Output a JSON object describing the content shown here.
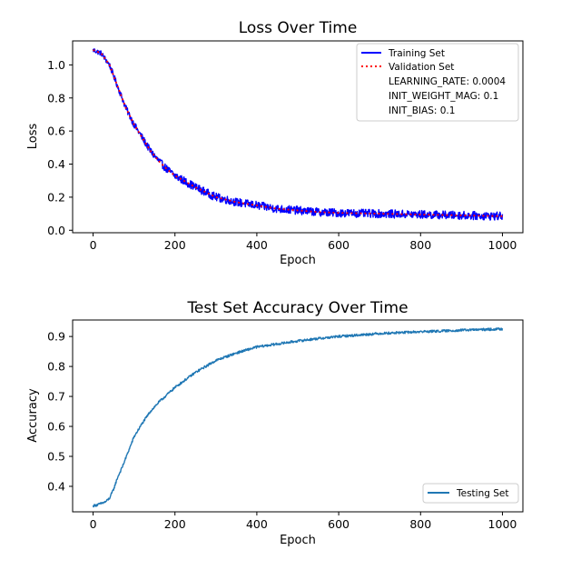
{
  "chart_data": [
    {
      "type": "line",
      "title": "Loss Over Time",
      "xlabel": "Epoch",
      "ylabel": "Loss",
      "xlim": [
        -50,
        1050
      ],
      "ylim": [
        -0.015,
        1.145
      ],
      "xticks": [
        0,
        200,
        400,
        600,
        800,
        1000
      ],
      "yticks": [
        0.0,
        0.2,
        0.4,
        0.6,
        0.8,
        1.0
      ],
      "xtick_labels": [
        "0",
        "200",
        "400",
        "600",
        "800",
        "1000"
      ],
      "ytick_labels": [
        "0.0",
        "0.2",
        "0.4",
        "0.6",
        "0.8",
        "1.0"
      ],
      "grid": false,
      "legend_position": "top-right",
      "legend": [
        {
          "label": "Training Set",
          "style": "solid",
          "color": "#0000ff"
        },
        {
          "label": "Validation Set",
          "style": "dotted",
          "color": "#ff0000"
        },
        {
          "label": "LEARNING_RATE: 0.0004",
          "style": "none"
        },
        {
          "label": "INIT_WEIGHT_MAG: 0.1",
          "style": "none"
        },
        {
          "label": "INIT_BIAS: 0.1",
          "style": "none"
        }
      ],
      "series": [
        {
          "name": "Training Set",
          "color": "#0000ff",
          "style": "solid",
          "noise": 0.025,
          "x": [
            0,
            20,
            40,
            60,
            80,
            100,
            120,
            140,
            160,
            180,
            200,
            250,
            300,
            350,
            400,
            450,
            500,
            550,
            600,
            700,
            800,
            900,
            1000
          ],
          "y": [
            1.09,
            1.07,
            1.0,
            0.87,
            0.74,
            0.64,
            0.56,
            0.48,
            0.42,
            0.37,
            0.33,
            0.26,
            0.2,
            0.17,
            0.15,
            0.13,
            0.12,
            0.11,
            0.105,
            0.1,
            0.095,
            0.09,
            0.085
          ]
        },
        {
          "name": "Validation Set",
          "color": "#ff0000",
          "style": "dotted",
          "x": [
            0,
            20,
            40,
            60,
            80,
            100,
            120,
            140,
            160,
            180,
            200,
            250,
            300,
            350,
            400,
            450,
            500,
            550,
            600,
            700,
            800,
            900,
            1000
          ],
          "y": [
            1.09,
            1.07,
            1.0,
            0.87,
            0.74,
            0.64,
            0.56,
            0.48,
            0.42,
            0.37,
            0.33,
            0.26,
            0.2,
            0.17,
            0.15,
            0.13,
            0.12,
            0.11,
            0.105,
            0.1,
            0.095,
            0.09,
            0.085
          ]
        }
      ]
    },
    {
      "type": "line",
      "title": "Test Set Accuracy Over Time",
      "xlabel": "Epoch",
      "ylabel": "Accuracy",
      "xlim": [
        -50,
        1050
      ],
      "ylim": [
        0.315,
        0.955
      ],
      "xticks": [
        0,
        200,
        400,
        600,
        800,
        1000
      ],
      "yticks": [
        0.4,
        0.5,
        0.6,
        0.7,
        0.8,
        0.9
      ],
      "xtick_labels": [
        "0",
        "200",
        "400",
        "600",
        "800",
        "1000"
      ],
      "ytick_labels": [
        "0.4",
        "0.5",
        "0.6",
        "0.7",
        "0.8",
        "0.9"
      ],
      "grid": false,
      "legend_position": "lower-right",
      "legend": [
        {
          "label": "Testing Set",
          "style": "solid",
          "color": "#1f77b4"
        }
      ],
      "series": [
        {
          "name": "Testing Set",
          "color": "#1f77b4",
          "style": "solid",
          "noise": 0.004,
          "x": [
            0,
            10,
            20,
            30,
            40,
            50,
            60,
            70,
            80,
            90,
            100,
            120,
            140,
            160,
            180,
            200,
            250,
            300,
            350,
            400,
            450,
            500,
            550,
            600,
            650,
            700,
            750,
            800,
            850,
            900,
            950,
            1000
          ],
          "y": [
            0.335,
            0.338,
            0.343,
            0.348,
            0.36,
            0.39,
            0.43,
            0.46,
            0.495,
            0.53,
            0.565,
            0.61,
            0.65,
            0.68,
            0.705,
            0.73,
            0.78,
            0.82,
            0.845,
            0.865,
            0.875,
            0.885,
            0.893,
            0.9,
            0.905,
            0.91,
            0.913,
            0.916,
            0.918,
            0.921,
            0.923,
            0.925
          ]
        }
      ]
    }
  ]
}
